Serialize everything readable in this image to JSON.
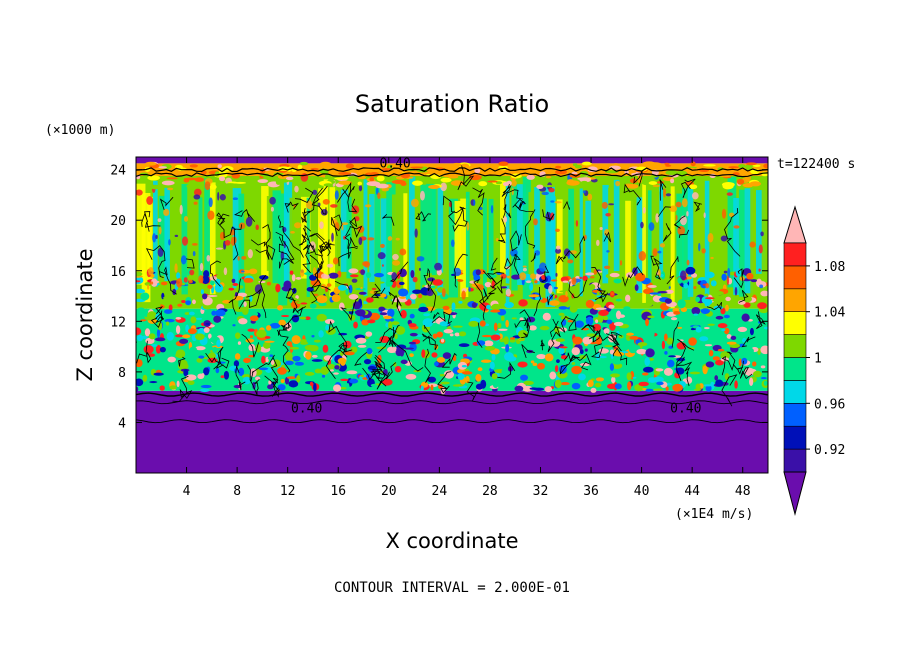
{
  "chart_data": {
    "type": "heatmap",
    "title": "Saturation Ratio",
    "xlabel": "X coordinate",
    "ylabel": "Z coordinate",
    "x_unit": "(×1E4 m/s)",
    "y_unit": "(×1000 m)",
    "time_label": "t=122400 s",
    "footer": "CONTOUR INTERVAL = 2.000E-01",
    "xlim": [
      0,
      50
    ],
    "ylim": [
      0,
      25
    ],
    "x_ticks": [
      "4",
      "8",
      "12",
      "16",
      "20",
      "24",
      "28",
      "32",
      "36",
      "40",
      "44",
      "48"
    ],
    "y_ticks": [
      "4",
      "8",
      "12",
      "16",
      "20",
      "24"
    ],
    "contour_labels": [
      "0.40",
      "0.40",
      "0.40"
    ],
    "colorbar": {
      "levels": [
        0.9,
        0.92,
        0.94,
        0.96,
        0.98,
        1.0,
        1.02,
        1.04,
        1.06,
        1.08,
        1.1
      ],
      "tick_labels": [
        "0.92",
        "0.96",
        "1",
        "1.04",
        "1.08"
      ],
      "colors": [
        "#6a0dad",
        "#3a10a8",
        "#0010b8",
        "#0060ff",
        "#00d8e8",
        "#00e58a",
        "#7ed800",
        "#ffff00",
        "#ffa500",
        "#ff6000",
        "#ff2020",
        "#ffb6b6"
      ]
    },
    "regions": [
      {
        "name": "lower-purple",
        "z": [
          0,
          6.5
        ],
        "value": 0.89
      },
      {
        "name": "mixed-layer",
        "z": [
          6.5,
          13
        ],
        "value": 0.98
      },
      {
        "name": "upper-green",
        "z": [
          13,
          23.5
        ],
        "value": 1.0
      },
      {
        "name": "top-band",
        "z": [
          23.5,
          24.5
        ],
        "value": 1.05
      },
      {
        "name": "cap-purple",
        "z": [
          24.5,
          25
        ],
        "value": 0.89
      }
    ]
  }
}
